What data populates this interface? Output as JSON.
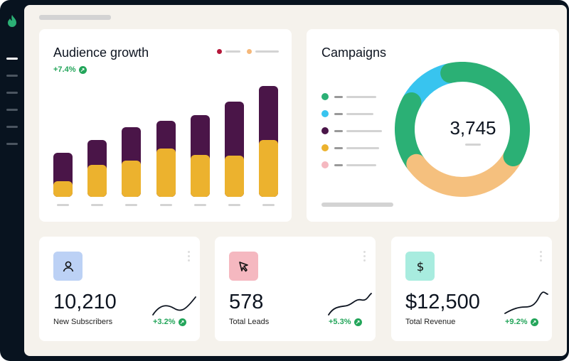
{
  "sidebar": {
    "logo": "flame-logo",
    "items": [
      {
        "active": true
      },
      {
        "active": false
      },
      {
        "active": false
      },
      {
        "active": false
      },
      {
        "active": false
      },
      {
        "active": false
      }
    ]
  },
  "audience": {
    "title": "Audience growth",
    "change": "+7.4%",
    "legend_colors": [
      "#b5183a",
      "#f5b87a"
    ]
  },
  "campaigns": {
    "title": "Campaigns",
    "total": "3,745",
    "legend_colors": [
      "#2bb075",
      "#38c4ef",
      "#4a1548",
      "#ecb22e",
      "#f5b8c0"
    ]
  },
  "chart_data": [
    {
      "type": "bar",
      "stacked": true,
      "categories": [
        "",
        "",
        "",
        "",
        "",
        "",
        ""
      ],
      "series": [
        {
          "color": "#ecb22e",
          "values": [
            22,
            45,
            51,
            68,
            59,
            58,
            80
          ]
        },
        {
          "color": "#4a1548",
          "values": [
            40,
            35,
            47,
            39,
            56,
            76,
            76
          ]
        }
      ],
      "grid": false
    },
    {
      "type": "pie",
      "donut": true,
      "slices": [
        {
          "color": "#2bb075",
          "value": 130
        },
        {
          "color": "#f5c07e",
          "value": 115
        },
        {
          "color": "#2bb075",
          "value": 65
        },
        {
          "color": "#38c4ef",
          "value": 50
        }
      ]
    }
  ],
  "stats": [
    {
      "value": "10,210",
      "label": "New Subscribers",
      "change": "+3.2%",
      "icon": "user-icon",
      "icon_bg": "#bcd1f5"
    },
    {
      "value": "578",
      "label": "Total Leads",
      "change": "+5.3%",
      "icon": "cursor-icon",
      "icon_bg": "#f5b8c0"
    },
    {
      "value": "$12,500",
      "label": "Total Revenue",
      "change": "+9.2%",
      "icon": "dollar-icon",
      "icon_bg": "#a8ecdf"
    }
  ]
}
